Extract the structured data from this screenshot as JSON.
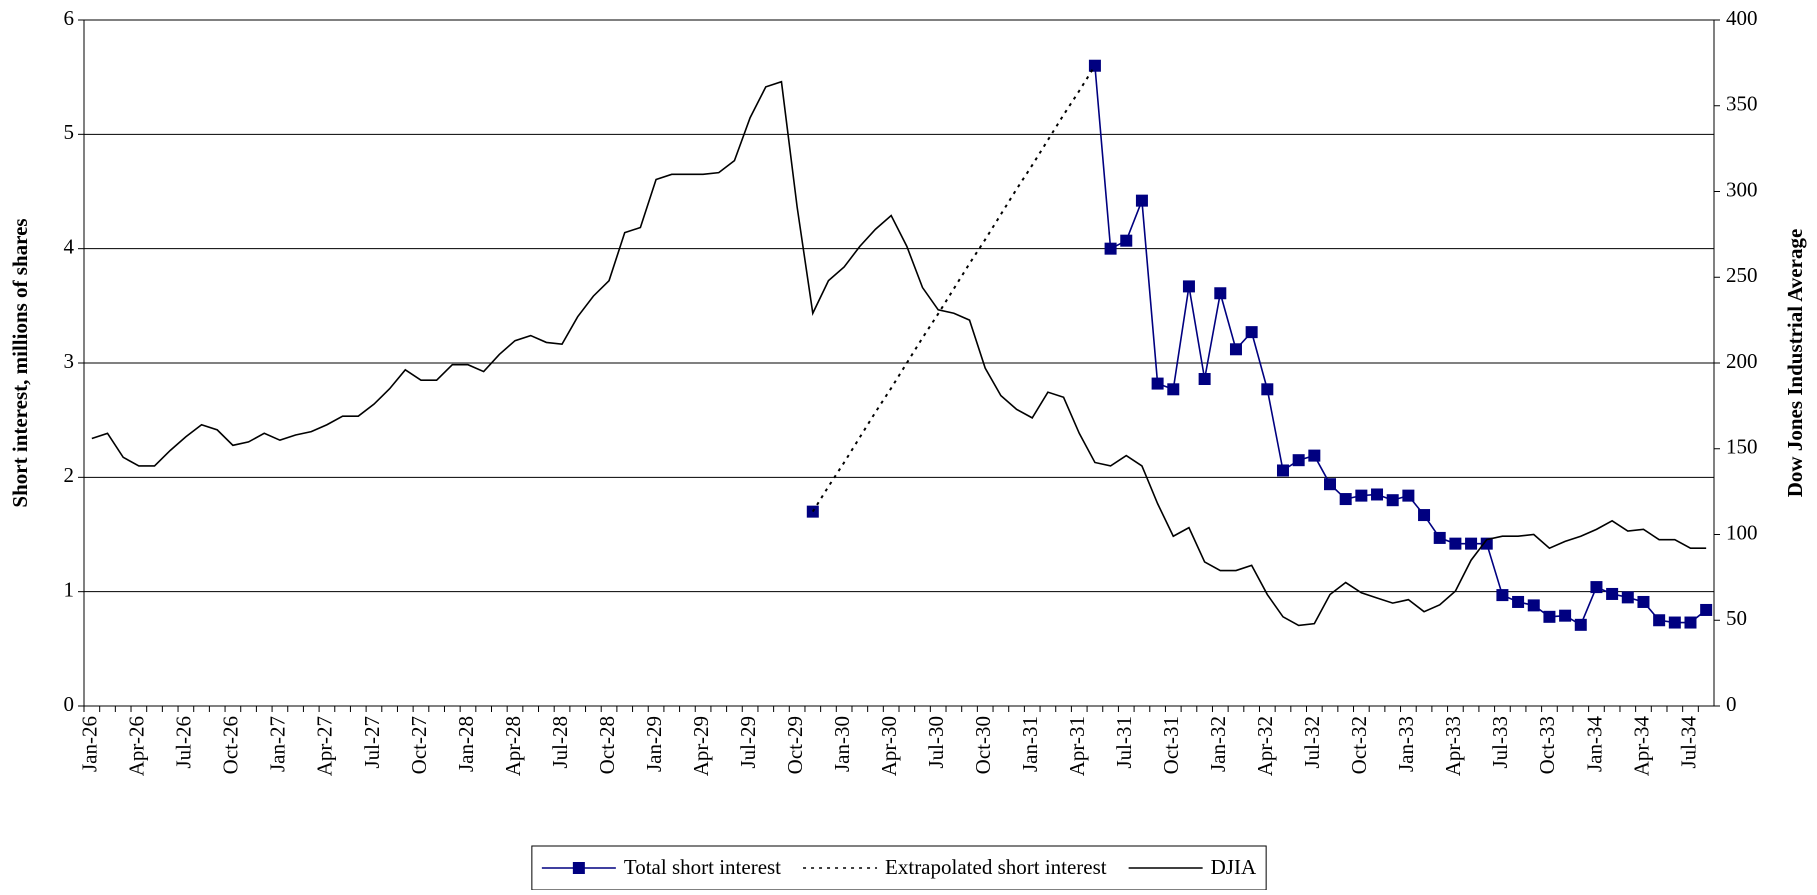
{
  "chart_data": {
    "type": "line",
    "categories": [
      "Jan-26",
      null,
      null,
      "Apr-26",
      null,
      null,
      "Jul-26",
      null,
      null,
      "Oct-26",
      null,
      null,
      "Jan-27",
      null,
      null,
      "Apr-27",
      null,
      null,
      "Jul-27",
      null,
      null,
      "Oct-27",
      null,
      null,
      "Jan-28",
      null,
      null,
      "Apr-28",
      null,
      null,
      "Jul-28",
      null,
      null,
      "Oct-28",
      null,
      null,
      "Jan-29",
      null,
      null,
      "Apr-29",
      null,
      null,
      "Jul-29",
      null,
      null,
      "Oct-29",
      null,
      null,
      "Jan-30",
      null,
      null,
      "Apr-30",
      null,
      null,
      "Jul-30",
      null,
      null,
      "Oct-30",
      null,
      null,
      "Jan-31",
      null,
      null,
      "Apr-31",
      null,
      null,
      "Jul-31",
      null,
      null,
      "Oct-31",
      null,
      null,
      "Jan-32",
      null,
      null,
      "Apr-32",
      null,
      null,
      "Jul-32",
      null,
      null,
      "Oct-32",
      null,
      null,
      "Jan-33",
      null,
      null,
      "Apr-33",
      null,
      null,
      "Jul-33",
      null,
      null,
      "Oct-33",
      null,
      null,
      "Jan-34",
      null,
      null,
      "Apr-34",
      null,
      null,
      "Jul-34",
      null
    ],
    "series": [
      {
        "name": "Total short interest",
        "color": "#000080",
        "marker": "square",
        "values": [
          null,
          null,
          null,
          null,
          null,
          null,
          null,
          null,
          null,
          null,
          null,
          null,
          null,
          null,
          null,
          null,
          null,
          null,
          null,
          null,
          null,
          null,
          null,
          null,
          null,
          null,
          null,
          null,
          null,
          null,
          null,
          null,
          null,
          null,
          null,
          null,
          null,
          null,
          null,
          null,
          null,
          null,
          null,
          null,
          null,
          null,
          1.7,
          null,
          null,
          null,
          null,
          null,
          null,
          null,
          null,
          null,
          null,
          null,
          null,
          null,
          null,
          null,
          null,
          null,
          5.6,
          4.0,
          4.07,
          4.42,
          2.82,
          2.77,
          3.67,
          2.86,
          3.61,
          3.12,
          3.27,
          2.77,
          2.06,
          2.15,
          2.19,
          1.94,
          1.81,
          1.84,
          1.85,
          1.8,
          1.84,
          1.67,
          1.47,
          1.42,
          1.42,
          1.42,
          0.97,
          0.91,
          0.88,
          0.78,
          0.79,
          0.71,
          1.04,
          0.98,
          0.95,
          0.91,
          0.75,
          0.73,
          0.73,
          0.84
        ]
      },
      {
        "name": "Extrapolated short interest",
        "color": "#000000",
        "dash": "dotted",
        "values": [
          null,
          null,
          null,
          null,
          null,
          null,
          null,
          null,
          null,
          null,
          null,
          null,
          null,
          null,
          null,
          null,
          null,
          null,
          null,
          null,
          null,
          null,
          null,
          null,
          null,
          null,
          null,
          null,
          null,
          null,
          null,
          null,
          null,
          null,
          null,
          null,
          null,
          null,
          null,
          null,
          null,
          null,
          null,
          null,
          null,
          null,
          1.7,
          1.92,
          2.13,
          2.35,
          2.57,
          2.78,
          3.0,
          3.22,
          3.43,
          3.65,
          3.87,
          4.08,
          4.3,
          4.52,
          4.73,
          4.95,
          5.17,
          5.38,
          5.6,
          null,
          null,
          null,
          null,
          null,
          null,
          null,
          null,
          null,
          null,
          null,
          null,
          null,
          null,
          null,
          null,
          null,
          null,
          null,
          null,
          null,
          null,
          null,
          null,
          null,
          null,
          null,
          null,
          null,
          null,
          null,
          null,
          null,
          null,
          null,
          null,
          null,
          null,
          null
        ]
      },
      {
        "name": "DJIA",
        "color": "#000000",
        "axis": "y2",
        "values": [
          156,
          159,
          145,
          140,
          140,
          149,
          157,
          164,
          161,
          152,
          154,
          159,
          155,
          158,
          160,
          164,
          169,
          169,
          176,
          185,
          196,
          190,
          190,
          199,
          199,
          195,
          205,
          213,
          216,
          212,
          211,
          227,
          239,
          248,
          276,
          279,
          307,
          310,
          310,
          310,
          311,
          318,
          343,
          361,
          364,
          291,
          229,
          248,
          256,
          268,
          278,
          286,
          268,
          244,
          231,
          229,
          225,
          197,
          181,
          173,
          168,
          183,
          180,
          159,
          142,
          140,
          146,
          140,
          118,
          99,
          104,
          84,
          79,
          79,
          82,
          65,
          52,
          47,
          48,
          65,
          72,
          66,
          63,
          60,
          62,
          55,
          59,
          67,
          85,
          97,
          99,
          99,
          100,
          92,
          96,
          99,
          103,
          108,
          102,
          103,
          97,
          97,
          92,
          92
        ]
      }
    ],
    "y_label": "Short interest, millions of shares",
    "y2_label": "Dow Jones Industrial Average",
    "ylim": [
      0,
      6
    ],
    "yticks": [
      0,
      1,
      2,
      3,
      4,
      5,
      6
    ],
    "y2lim": [
      0,
      400
    ],
    "y2ticks": [
      0,
      50,
      100,
      150,
      200,
      250,
      300,
      350,
      400
    ],
    "grid": true,
    "legend": "bottom"
  }
}
